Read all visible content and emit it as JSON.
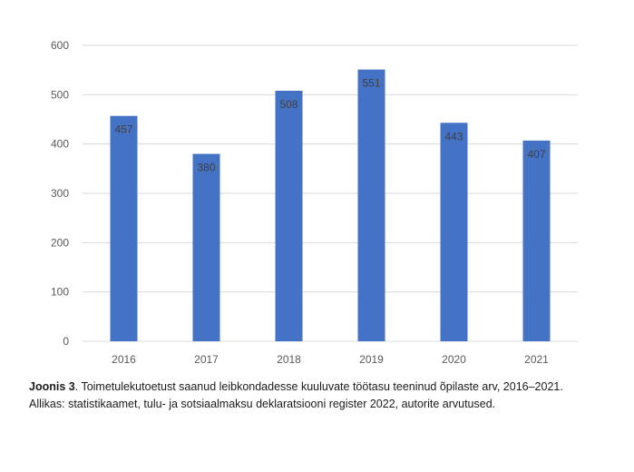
{
  "chart_data": {
    "type": "bar",
    "categories": [
      "2016",
      "2017",
      "2018",
      "2019",
      "2020",
      "2021"
    ],
    "values": [
      457,
      380,
      508,
      551,
      443,
      407
    ],
    "data_labels": [
      "457",
      "380",
      "508",
      "551",
      "443",
      "407"
    ],
    "ylim": [
      0,
      600
    ],
    "yticks": [
      0,
      100,
      200,
      300,
      400,
      500,
      600
    ],
    "ytick_labels": [
      "0",
      "100",
      "200",
      "300",
      "400",
      "500",
      "600"
    ],
    "grid": "horizontal",
    "bar_color": "#4472C4",
    "title": "",
    "xlabel": "",
    "ylabel": ""
  },
  "caption": {
    "label": "Joonis 3",
    "text": ". Toimetulekutoetust saanud leibkondadesse kuuluvate töötasu teeninud õpilaste arv, 2016–2021. Allikas: statistikaamet, tulu- ja sotsiaalmaksu deklaratsiooni register 2022, autorite arvutused."
  }
}
